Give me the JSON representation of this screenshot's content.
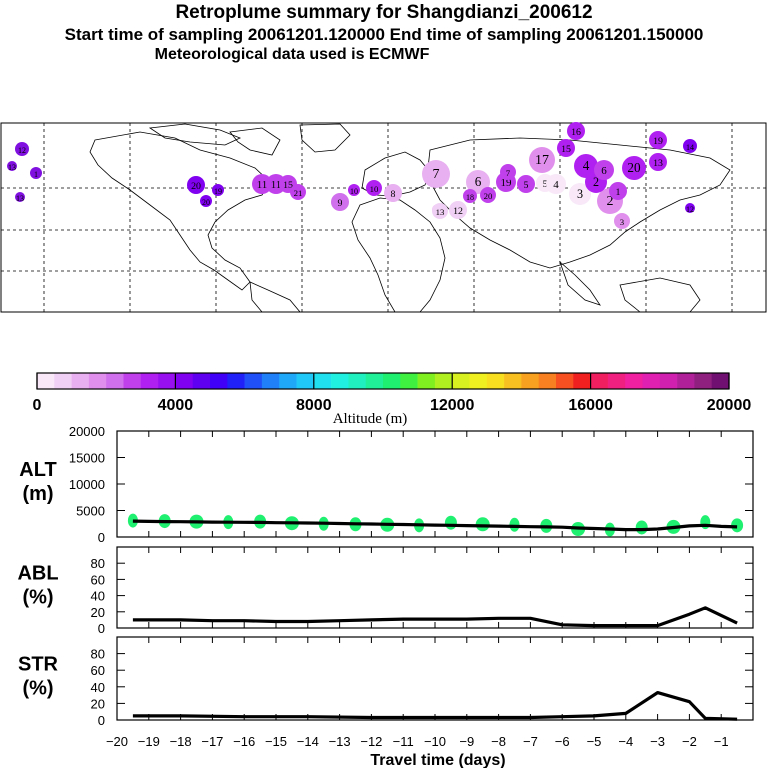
{
  "header": {
    "title": "Retroplume summary for Shangdianzi_200612",
    "sampling": "Start time of sampling 20061201.120000     End time of sampling 20061201.150000",
    "met": "Meteorological data used is ECMWF"
  },
  "colorbar": {
    "label": "Altitude (m)",
    "min": 0,
    "max": 20000,
    "tick_labels": [
      "0",
      "4000",
      "8000",
      "12000",
      "16000",
      "20000"
    ],
    "colors": [
      "#f8e8f8",
      "#f0d0f4",
      "#e8b0f0",
      "#e090ec",
      "#d070ec",
      "#c040ec",
      "#b020f0",
      "#9810f0",
      "#8000f0",
      "#6000f0",
      "#4000f8",
      "#2020f8",
      "#2050f8",
      "#2080f8",
      "#20a8f8",
      "#20c8f8",
      "#20e0f0",
      "#20f0e0",
      "#20f0c0",
      "#20f098",
      "#20f070",
      "#40f040",
      "#80f020",
      "#b0f020",
      "#d8f020",
      "#f0f020",
      "#f8e020",
      "#f8c020",
      "#f8a020",
      "#f88020",
      "#f85020",
      "#f02020",
      "#f02060",
      "#f02080",
      "#f020a0",
      "#e020b0",
      "#d020b0",
      "#b02098",
      "#902080",
      "#701070"
    ]
  },
  "chart_data": [
    {
      "type": "line",
      "panel": "ALT",
      "ylabel": "ALT\n(m)",
      "ylabel_lines": [
        "ALT",
        "(m)"
      ],
      "ylim": [
        0,
        20000
      ],
      "yticks": [
        0,
        5000,
        10000,
        15000,
        20000
      ],
      "xlim": [
        -20,
        0
      ],
      "x": [
        -19.5,
        -19,
        -18.5,
        -18,
        -17.5,
        -17,
        -16.5,
        -16,
        -15.5,
        -15,
        -14.5,
        -14,
        -13.5,
        -13,
        -12.5,
        -12,
        -11.5,
        -11,
        -10.5,
        -10,
        -9.5,
        -9,
        -8.5,
        -8,
        -7.5,
        -7,
        -6.5,
        -6,
        -5.5,
        -5,
        -4.5,
        -4,
        -3.5,
        -3,
        -2.5,
        -2,
        -1.5,
        -1,
        -0.5
      ],
      "values": [
        3000,
        2950,
        2900,
        2880,
        2850,
        2820,
        2800,
        2780,
        2750,
        2700,
        2680,
        2650,
        2600,
        2550,
        2500,
        2450,
        2400,
        2350,
        2300,
        2250,
        2200,
        2150,
        2100,
        2050,
        2000,
        1950,
        1900,
        1850,
        1700,
        1600,
        1500,
        1400,
        1400,
        1500,
        1800,
        2100,
        2200,
        2000,
        1900
      ],
      "scatter_x": [
        -19.5,
        -18.5,
        -17.5,
        -16.5,
        -15.5,
        -14.5,
        -13.5,
        -12.5,
        -11.5,
        -10.5,
        -9.5,
        -8.5,
        -7.5,
        -6.5,
        -5.5,
        -4.5,
        -3.5,
        -2.5,
        -1.5,
        -0.5
      ],
      "scatter_y": [
        3100,
        3000,
        2900,
        2800,
        2900,
        2600,
        2500,
        2400,
        2300,
        2200,
        2700,
        2400,
        2300,
        2100,
        1500,
        1400,
        1800,
        1900,
        2800,
        2200
      ],
      "scatter_color": "#20f070"
    },
    {
      "type": "line",
      "panel": "ABL",
      "ylabel": "ABL\n(%)",
      "ylabel_lines": [
        "ABL",
        "(%)"
      ],
      "ylim": [
        0,
        100
      ],
      "yticks": [
        0,
        20,
        40,
        60,
        80
      ],
      "xlim": [
        -20,
        0
      ],
      "x": [
        -19.5,
        -18,
        -17,
        -16,
        -15,
        -14,
        -13,
        -12,
        -11,
        -10,
        -9,
        -8,
        -7,
        -6,
        -5,
        -4,
        -3,
        -2,
        -1.5,
        -0.5
      ],
      "values": [
        10,
        10,
        9,
        9,
        8,
        8,
        9,
        10,
        11,
        11,
        11,
        12,
        12,
        4,
        3,
        3,
        3,
        17,
        25,
        6
      ]
    },
    {
      "type": "line",
      "panel": "STR",
      "ylabel": "STR\n(%)",
      "ylabel_lines": [
        "STR",
        "(%)"
      ],
      "ylim": [
        0,
        100
      ],
      "yticks": [
        0,
        20,
        40,
        60,
        80
      ],
      "xlim": [
        -20,
        0
      ],
      "xlabel": "Travel time (days)",
      "xticks": [
        -20,
        -19,
        -18,
        -17,
        -16,
        -15,
        -14,
        -13,
        -12,
        -11,
        -10,
        -9,
        -8,
        -7,
        -6,
        -5,
        -4,
        -3,
        -2,
        -1
      ],
      "x": [
        -19.5,
        -18,
        -16,
        -14,
        -12,
        -10,
        -8,
        -7,
        -6,
        -5,
        -4,
        -3,
        -2,
        -1.5,
        -0.5
      ],
      "values": [
        5,
        5,
        4,
        4,
        3,
        3,
        3,
        3,
        4,
        5,
        8,
        33,
        22,
        2,
        1
      ]
    }
  ],
  "map": {
    "labels": [
      "12",
      "13",
      "1",
      "13",
      "20",
      "20",
      "19",
      "11",
      "11",
      "15",
      "21",
      "9",
      "10",
      "10",
      "8",
      "7",
      "6",
      "14",
      "13",
      "12",
      "18",
      "20",
      "19",
      "16",
      "15",
      "17",
      "5",
      "3",
      "4",
      "2",
      "20",
      "19",
      "14",
      "13",
      "4",
      "2",
      "1",
      "5",
      "7",
      "6",
      "3",
      "12"
    ]
  }
}
